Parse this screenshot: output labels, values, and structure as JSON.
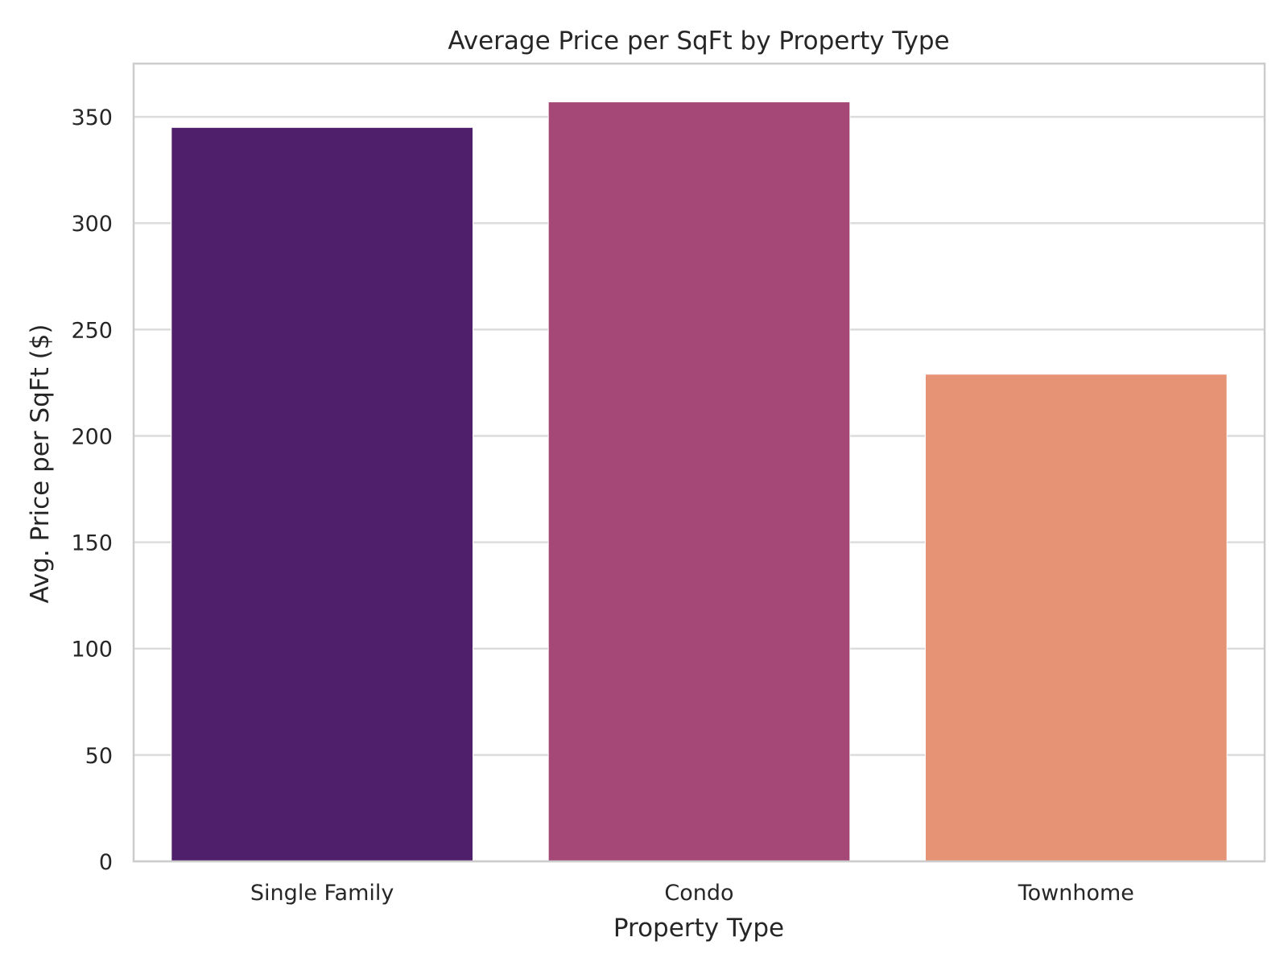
{
  "chart_data": {
    "type": "bar",
    "title": "Average Price per SqFt by Property Type",
    "xlabel": "Property Type",
    "ylabel": "Avg. Price per SqFt ($)",
    "categories": [
      "Single Family",
      "Condo",
      "Townhome"
    ],
    "values": [
      345,
      357,
      229
    ],
    "colors": [
      "#4f1f6b",
      "#a54777",
      "#e69275"
    ],
    "ylim": [
      0,
      375
    ],
    "yticks": [
      0,
      50,
      100,
      150,
      200,
      250,
      300,
      350
    ],
    "grid": true,
    "grid_axis": "y"
  }
}
